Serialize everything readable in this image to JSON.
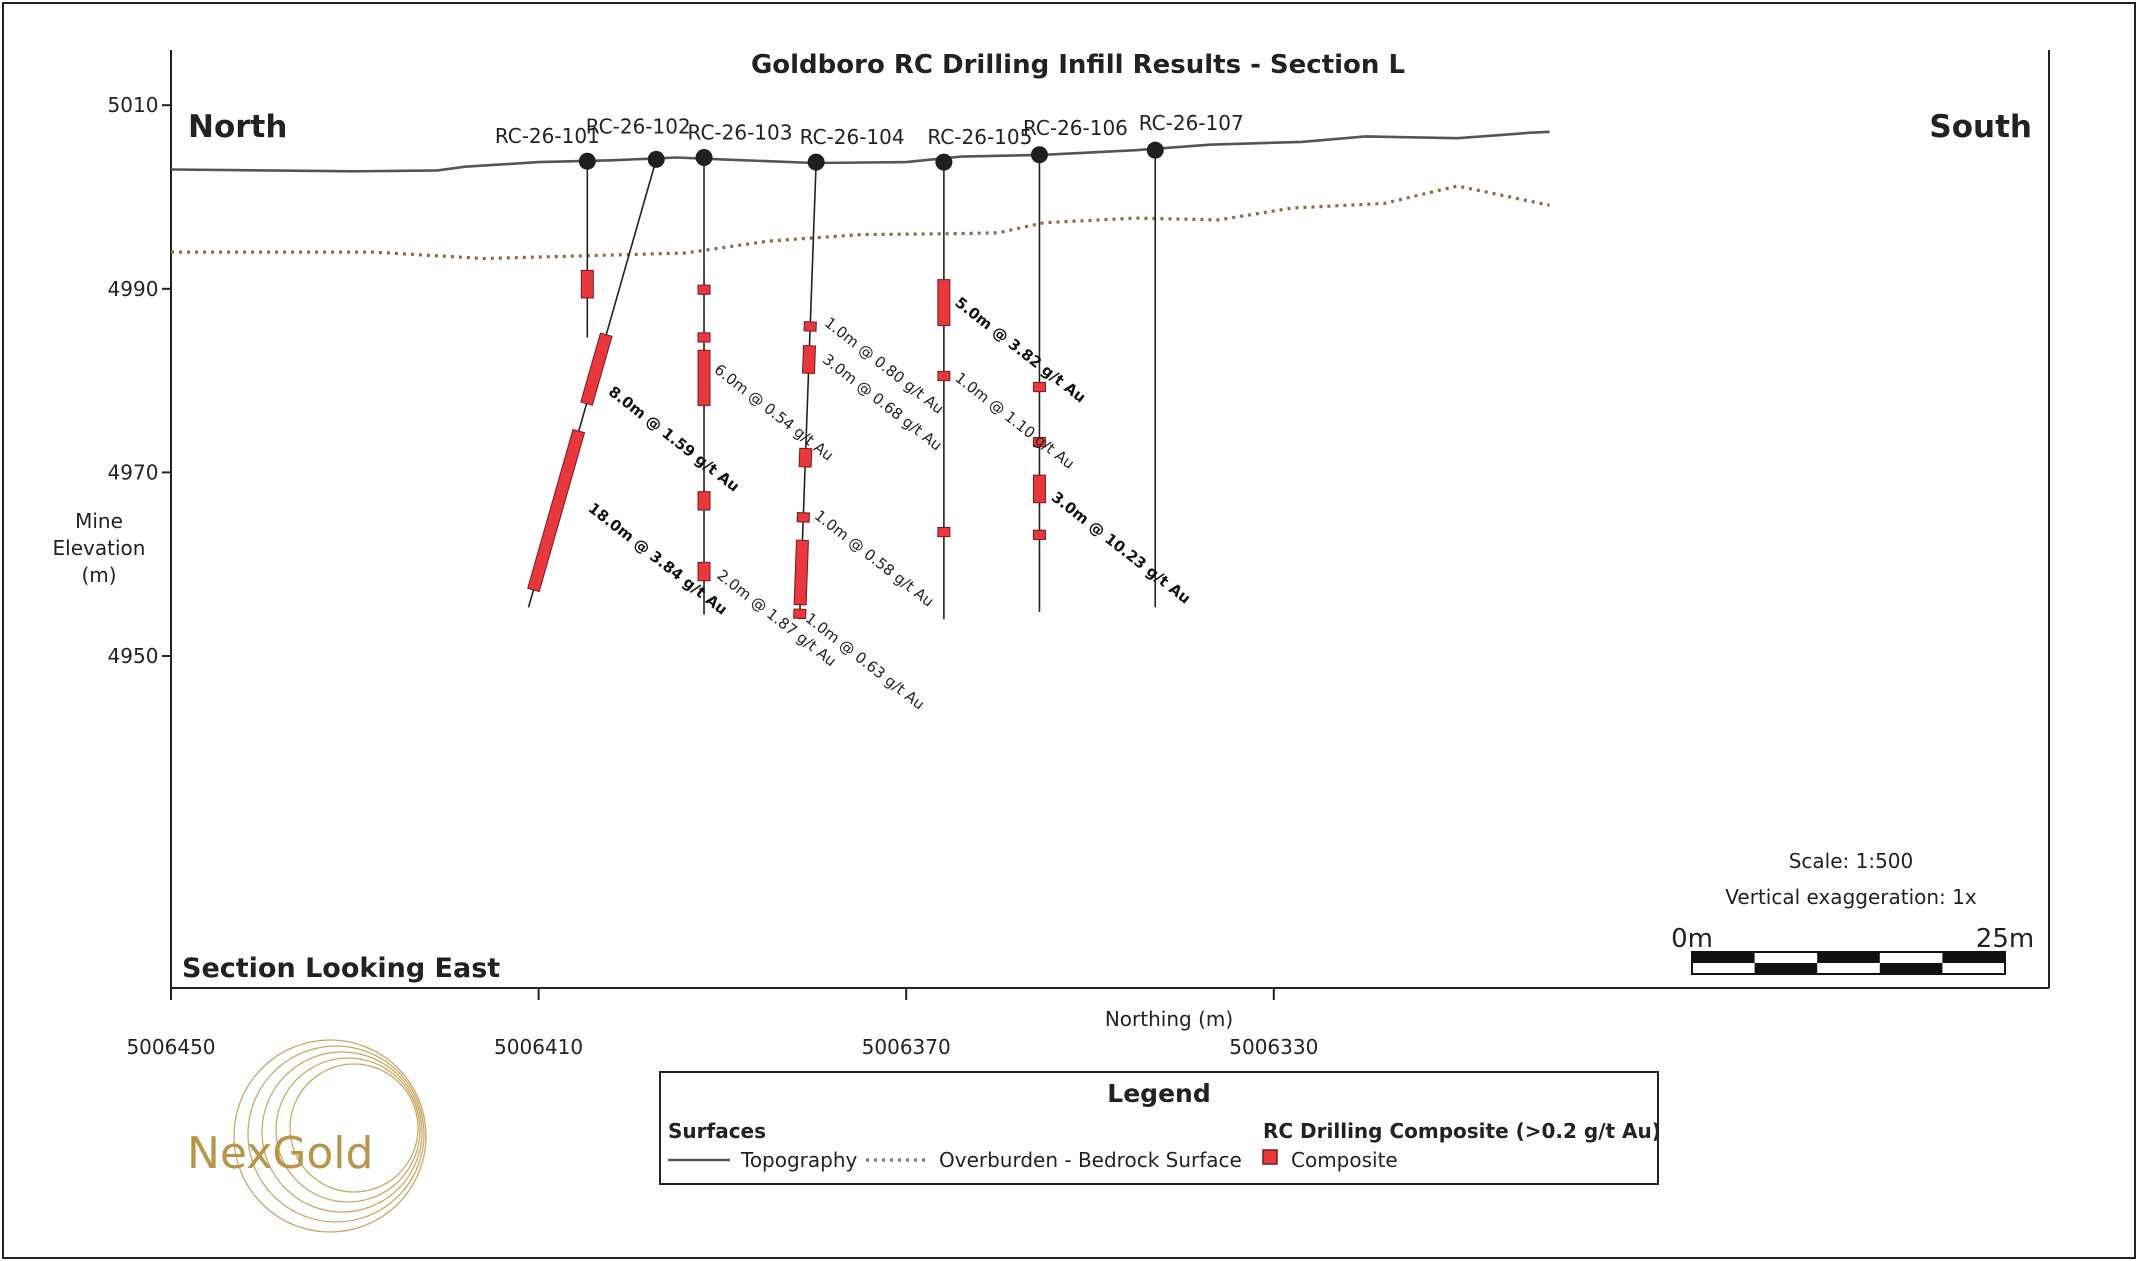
{
  "chart_data": {
    "type": "cross-section",
    "title": "Goldboro RC Drilling Infill Results - Section L",
    "xlabel": "Northing (m)",
    "ylabel_lines": [
      "Mine",
      "Elevation",
      "(m)"
    ],
    "xlim": [
      5006450,
      5006300
    ],
    "ylim": [
      4943,
      5017
    ],
    "x_ticks": [
      5006450,
      5006410,
      5006370,
      5006330
    ],
    "y_ticks": [
      4950,
      4970,
      4990,
      5010
    ],
    "grid": false,
    "direction_left": "North",
    "direction_right": "South",
    "section_note": "Section Looking East",
    "scale_text": "Scale: 1:500",
    "exaggeration_text": "Vertical exaggeration: 1x",
    "scale_bar": {
      "start_label": "0m",
      "end_label": "25m",
      "length_m": 25,
      "segments": 5
    },
    "topography": [
      [
        5006450,
        5003.0
      ],
      [
        5006430,
        5002.8
      ],
      [
        5006421,
        5002.9
      ],
      [
        5006418,
        5003.3
      ],
      [
        5006410,
        5003.8
      ],
      [
        5006402,
        5004.0
      ],
      [
        5006395,
        5004.3
      ],
      [
        5006390,
        5004.1
      ],
      [
        5006380,
        5003.7
      ],
      [
        5006370,
        5003.8
      ],
      [
        5006364,
        5004.4
      ],
      [
        5006355,
        5004.6
      ],
      [
        5006345,
        5005.1
      ],
      [
        5006337,
        5005.7
      ],
      [
        5006327,
        5006.0
      ],
      [
        5006320,
        5006.6
      ],
      [
        5006310,
        5006.4
      ],
      [
        5006302,
        5007.0
      ],
      [
        5006300,
        5007.1
      ]
    ],
    "bedrock": [
      [
        5006450,
        4994.0
      ],
      [
        5006428,
        4994.0
      ],
      [
        5006416,
        4993.3
      ],
      [
        5006405,
        4993.6
      ],
      [
        5006394,
        4993.9
      ],
      [
        5006385,
        4995.2
      ],
      [
        5006375,
        4995.9
      ],
      [
        5006365,
        4996.0
      ],
      [
        5006360,
        4996.1
      ],
      [
        5006355,
        4997.2
      ],
      [
        5006345,
        4997.7
      ],
      [
        5006336,
        4997.5
      ],
      [
        5006328,
        4998.8
      ],
      [
        5006318,
        4999.3
      ],
      [
        5006310,
        5001.2
      ],
      [
        5006300,
        4999.1
      ]
    ],
    "holes": [
      {
        "name": "RC-26-101",
        "collar": [
          5006404.7,
          5003.9
        ],
        "toe": [
          5006404.7,
          4984.7
        ],
        "composites": [
          {
            "from": 4992.0,
            "to": 4989.0
          }
        ]
      },
      {
        "name": "RC-26-102",
        "collar": [
          5006397.2,
          5004.1
        ],
        "toe": [
          5006411.1,
          4955.3
        ],
        "composites": [
          {
            "from": 4985.0,
            "to": 4977.5
          },
          {
            "from": 4974.5,
            "to": 4957.2
          }
        ]
      },
      {
        "name": "RC-26-103",
        "collar": [
          5006392.0,
          5004.3
        ],
        "toe": [
          5006392.0,
          4954.5
        ],
        "composites": [
          {
            "from": 4990.4,
            "to": 4989.4
          },
          {
            "from": 4985.2,
            "to": 4984.2
          },
          {
            "from": 4983.3,
            "to": 4977.3
          },
          {
            "from": 4967.9,
            "to": 4965.9
          },
          {
            "from": 4960.2,
            "to": 4958.2
          }
        ]
      },
      {
        "name": "RC-26-104",
        "collar": [
          5006379.8,
          5003.8
        ],
        "toe": [
          5006381.6,
          4954.0
        ],
        "composites": [
          {
            "from": 4986.4,
            "to": 4985.4
          },
          {
            "from": 4983.8,
            "to": 4980.8
          },
          {
            "from": 4972.6,
            "to": 4970.6
          },
          {
            "from": 4965.6,
            "to": 4964.6
          },
          {
            "from": 4962.6,
            "to": 4955.6
          },
          {
            "from": 4955.1,
            "to": 4954.1
          }
        ]
      },
      {
        "name": "RC-26-105",
        "collar": [
          5006365.9,
          5003.8
        ],
        "toe": [
          5006365.9,
          4954.0
        ],
        "composites": [
          {
            "from": 4991.0,
            "to": 4986.0
          },
          {
            "from": 4981.0,
            "to": 4980.0
          },
          {
            "from": 4964.0,
            "to": 4963.0
          }
        ]
      },
      {
        "name": "RC-26-106",
        "collar": [
          5006355.5,
          5004.6
        ],
        "toe": [
          5006355.5,
          4954.8
        ],
        "composites": [
          {
            "from": 4979.8,
            "to": 4978.8
          },
          {
            "from": 4973.8,
            "to": 4972.8
          },
          {
            "from": 4969.7,
            "to": 4966.7
          },
          {
            "from": 4963.7,
            "to": 4962.7
          }
        ]
      },
      {
        "name": "RC-26-107",
        "collar": [
          5006342.9,
          5005.1
        ],
        "toe": [
          5006342.9,
          4955.3
        ],
        "composites": []
      }
    ],
    "annotations": [
      {
        "text": "8.0m @ 1.59 g/t Au",
        "at": [
          5006402.5,
          4978.6
        ],
        "bold": true
      },
      {
        "text": "18.0m @ 3.84 g/t Au",
        "at": [
          5006404.7,
          4965.9
        ],
        "bold": true
      },
      {
        "text": "6.0m @ 0.54 g/t Au",
        "at": [
          5006391.0,
          4981.0
        ],
        "bold": false
      },
      {
        "text": "2.0m @ 1.87 g/t Au",
        "at": [
          5006390.7,
          4958.6
        ],
        "bold": false
      },
      {
        "text": "1.0m @ 0.80 g/t Au",
        "at": [
          5006379.0,
          4986.1
        ],
        "bold": false
      },
      {
        "text": "3.0m @ 0.68 g/t Au",
        "at": [
          5006379.2,
          4982.1
        ],
        "bold": false
      },
      {
        "text": "1.0m @ 0.58 g/t Au",
        "at": [
          5006380.1,
          4965.1
        ],
        "bold": false
      },
      {
        "text": "1.0m @ 0.63 g/t Au",
        "at": [
          5006381.1,
          4953.9
        ],
        "bold": false
      },
      {
        "text": "5.0m @ 3.82 g/t Au",
        "at": [
          5006364.8,
          4988.3
        ],
        "bold": true
      },
      {
        "text": "1.0m @ 1.10 g/t Au",
        "at": [
          5006364.8,
          4980.1
        ],
        "bold": false
      },
      {
        "text": "3.0m @ 10.23 g/t Au",
        "at": [
          5006354.3,
          4967.1
        ],
        "bold": true
      }
    ]
  },
  "legend": {
    "title": "Legend",
    "surfaces_heading": "Surfaces",
    "topography_label": "Topography",
    "bedrock_label": "Overburden - Bedrock Surface",
    "composite_heading": "RC Drilling Composite (>0.2 g/t Au)",
    "composite_label": "Composite"
  },
  "logo": {
    "text": "NexGold"
  },
  "colors": {
    "composite": "#e8373d",
    "composite_edge": "#7a1a1a",
    "topography": "#555555",
    "bedrock": "#8a6d3b",
    "collar": "#1f1f1f",
    "logo": "#b8954a"
  }
}
